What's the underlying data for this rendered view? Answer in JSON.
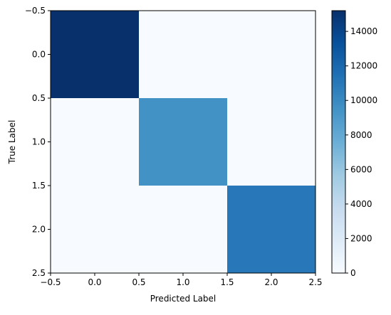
{
  "chart_data": {
    "type": "heatmap",
    "xlabel": "Predicted Label",
    "ylabel": "True Label",
    "x_centers": [
      0,
      1,
      2
    ],
    "y_centers": [
      0,
      1,
      2
    ],
    "xlim": [
      -0.5,
      2.5
    ],
    "ylim": [
      2.5,
      -0.5
    ],
    "y_axis_inverted": true,
    "x_ticks": [
      -0.5,
      0.0,
      0.5,
      1.0,
      1.5,
      2.0,
      2.5
    ],
    "x_tick_labels": [
      "−0.5",
      "0.0",
      "0.5",
      "1.0",
      "1.5",
      "2.0",
      "2.5"
    ],
    "y_ticks": [
      -0.5,
      0.0,
      0.5,
      1.0,
      1.5,
      2.0,
      2.5
    ],
    "y_tick_labels": [
      "−0.5",
      "0.0",
      "0.5",
      "1.0",
      "1.5",
      "2.0",
      "2.5"
    ],
    "matrix": [
      [
        15200,
        0,
        0
      ],
      [
        0,
        9500,
        0
      ],
      [
        0,
        0,
        11000
      ]
    ],
    "colormap": "Blues",
    "colormap_stops": [
      "#f7fbff",
      "#deebf7",
      "#c6dbef",
      "#9ecae1",
      "#6baed6",
      "#4292c6",
      "#2171b5",
      "#08519c",
      "#08306b"
    ],
    "colorbar": {
      "min": 0,
      "max": 15200,
      "ticks": [
        0,
        2000,
        4000,
        6000,
        8000,
        10000,
        12000,
        14000
      ],
      "tick_labels": [
        "0",
        "2000",
        "4000",
        "6000",
        "8000",
        "10000",
        "12000",
        "14000"
      ]
    },
    "grid": false
  }
}
